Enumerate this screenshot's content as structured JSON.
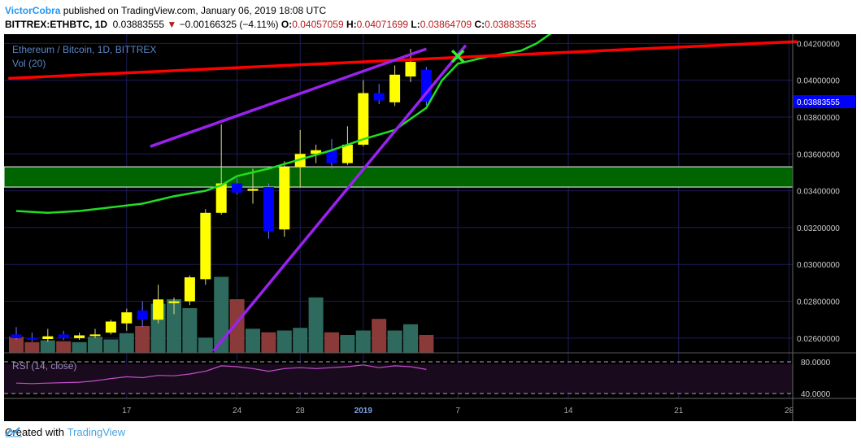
{
  "header": {
    "author": "VictorCobra",
    "published": " published on TradingView.com, January 06, 2019 18:08 UTC",
    "symbol": "BITTREX:ETHBTC, 1D",
    "last": "0.03883555",
    "arrow": "▼",
    "change": "−0.00166325 (−4.11%)",
    "o_label": "O:",
    "o": "0.04057059",
    "h_label": "H:",
    "h": "0.04071699",
    "l_label": "L:",
    "l": "0.03864709",
    "c_label": "C:",
    "c": "0.03883555"
  },
  "legend": {
    "title": "Ethereum / Bitcoin, 1D, BITTREX",
    "vol": "Vol (20)",
    "rsi": "RSI (14, close)"
  },
  "footer": {
    "created": "Created with",
    "brand": "TradingView"
  },
  "colors": {
    "bull": "#ffff00",
    "bear": "#0000ff",
    "vol_up": "#2e6b5e",
    "vol_down": "#8b3a3a",
    "ma": "#22dd22",
    "resistance": "#ff0000",
    "channel": "#9922ee",
    "zone": "#006400",
    "rsi": "#c050c8",
    "grid": "#1c1c5a",
    "price_tag": "#0000ff"
  },
  "chart_data": {
    "type": "candlestick",
    "title": "Ethereum / Bitcoin, 1D, BITTREX",
    "x_tick_labels": [
      "17",
      "24",
      "28",
      "2019",
      "7",
      "14",
      "21",
      "28"
    ],
    "x_tick_index": [
      7,
      14,
      18,
      22,
      28,
      35,
      42,
      49
    ],
    "y_ticks": [
      "0.04200000",
      "0.04000000",
      "0.03800000",
      "0.03600000",
      "0.03400000",
      "0.03200000",
      "0.03000000",
      "0.02800000",
      "0.02600000"
    ],
    "ylim": [
      0.0252,
      0.0425
    ],
    "last_price": "0.03883555",
    "candles": [
      {
        "o": 0.0262,
        "h": 0.0266,
        "l": 0.0259,
        "c": 0.026
      },
      {
        "o": 0.026,
        "h": 0.0263,
        "l": 0.0258,
        "c": 0.02595
      },
      {
        "o": 0.02595,
        "h": 0.0265,
        "l": 0.0258,
        "c": 0.0261
      },
      {
        "o": 0.0262,
        "h": 0.0264,
        "l": 0.0259,
        "c": 0.026
      },
      {
        "o": 0.026,
        "h": 0.0263,
        "l": 0.0259,
        "c": 0.02615
      },
      {
        "o": 0.02615,
        "h": 0.0265,
        "l": 0.026,
        "c": 0.0262
      },
      {
        "o": 0.0263,
        "h": 0.027,
        "l": 0.0262,
        "c": 0.0269
      },
      {
        "o": 0.0268,
        "h": 0.0276,
        "l": 0.0264,
        "c": 0.0274
      },
      {
        "o": 0.0275,
        "h": 0.028,
        "l": 0.0266,
        "c": 0.027
      },
      {
        "o": 0.027,
        "h": 0.0289,
        "l": 0.0268,
        "c": 0.0281
      },
      {
        "o": 0.0279,
        "h": 0.0282,
        "l": 0.0273,
        "c": 0.028
      },
      {
        "o": 0.028,
        "h": 0.0294,
        "l": 0.0278,
        "c": 0.0293
      },
      {
        "o": 0.0292,
        "h": 0.033,
        "l": 0.0289,
        "c": 0.0328
      },
      {
        "o": 0.0328,
        "h": 0.0376,
        "l": 0.0327,
        "c": 0.0344
      },
      {
        "o": 0.0344,
        "h": 0.0347,
        "l": 0.0338,
        "c": 0.0339
      },
      {
        "o": 0.034,
        "h": 0.0352,
        "l": 0.0333,
        "c": 0.0341
      },
      {
        "o": 0.0342,
        "h": 0.0344,
        "l": 0.0314,
        "c": 0.0318
      },
      {
        "o": 0.0319,
        "h": 0.0356,
        "l": 0.0315,
        "c": 0.0353
      },
      {
        "o": 0.0353,
        "h": 0.0373,
        "l": 0.0342,
        "c": 0.036
      },
      {
        "o": 0.036,
        "h": 0.0365,
        "l": 0.0355,
        "c": 0.0362
      },
      {
        "o": 0.0362,
        "h": 0.0368,
        "l": 0.0352,
        "c": 0.0355
      },
      {
        "o": 0.0355,
        "h": 0.0375,
        "l": 0.0354,
        "c": 0.0365
      },
      {
        "o": 0.0365,
        "h": 0.04,
        "l": 0.0364,
        "c": 0.0393
      },
      {
        "o": 0.0393,
        "h": 0.0398,
        "l": 0.0387,
        "c": 0.0389
      },
      {
        "o": 0.0388,
        "h": 0.0408,
        "l": 0.0386,
        "c": 0.0403
      },
      {
        "o": 0.0402,
        "h": 0.0417,
        "l": 0.0399,
        "c": 0.041
      },
      {
        "o": 0.04057059,
        "h": 0.04071699,
        "l": 0.03864709,
        "c": 0.03883555
      }
    ],
    "volume": [
      0.18,
      0.12,
      0.14,
      0.13,
      0.12,
      0.18,
      0.15,
      0.22,
      0.3,
      0.55,
      0.6,
      0.5,
      0.17,
      0.85,
      0.6,
      0.27,
      0.23,
      0.25,
      0.28,
      0.62,
      0.23,
      0.2,
      0.25,
      0.38,
      0.25,
      0.32,
      0.2
    ],
    "moving_average": [
      [
        0,
        0.0329
      ],
      [
        2,
        0.0328
      ],
      [
        4,
        0.0329
      ],
      [
        6,
        0.0331
      ],
      [
        8,
        0.0333
      ],
      [
        10,
        0.0337
      ],
      [
        12,
        0.034
      ],
      [
        13,
        0.0343
      ],
      [
        14,
        0.0348
      ],
      [
        16,
        0.0352
      ],
      [
        18,
        0.0357
      ],
      [
        20,
        0.0362
      ],
      [
        22,
        0.0368
      ],
      [
        24,
        0.0373
      ],
      [
        26,
        0.0385
      ],
      [
        27,
        0.04
      ],
      [
        28,
        0.0409
      ],
      [
        30,
        0.0413
      ],
      [
        32,
        0.0416
      ],
      [
        33,
        0.042
      ],
      [
        34,
        0.0426
      ]
    ],
    "resistance_line": [
      [
        -0.5,
        0.0401
      ],
      [
        49.5,
        0.0421
      ]
    ],
    "channel_upper": [
      [
        8.5,
        0.0364
      ],
      [
        26,
        0.0417
      ]
    ],
    "channel_lower": [
      [
        12.5,
        0.0253
      ],
      [
        28.5,
        0.0419
      ]
    ],
    "support_zone": [
      0.0342,
      0.0353
    ],
    "signal_marker": [
      28,
      0.0413
    ],
    "rsi_ticks": [
      "80.0000",
      "40.0000"
    ]
  }
}
